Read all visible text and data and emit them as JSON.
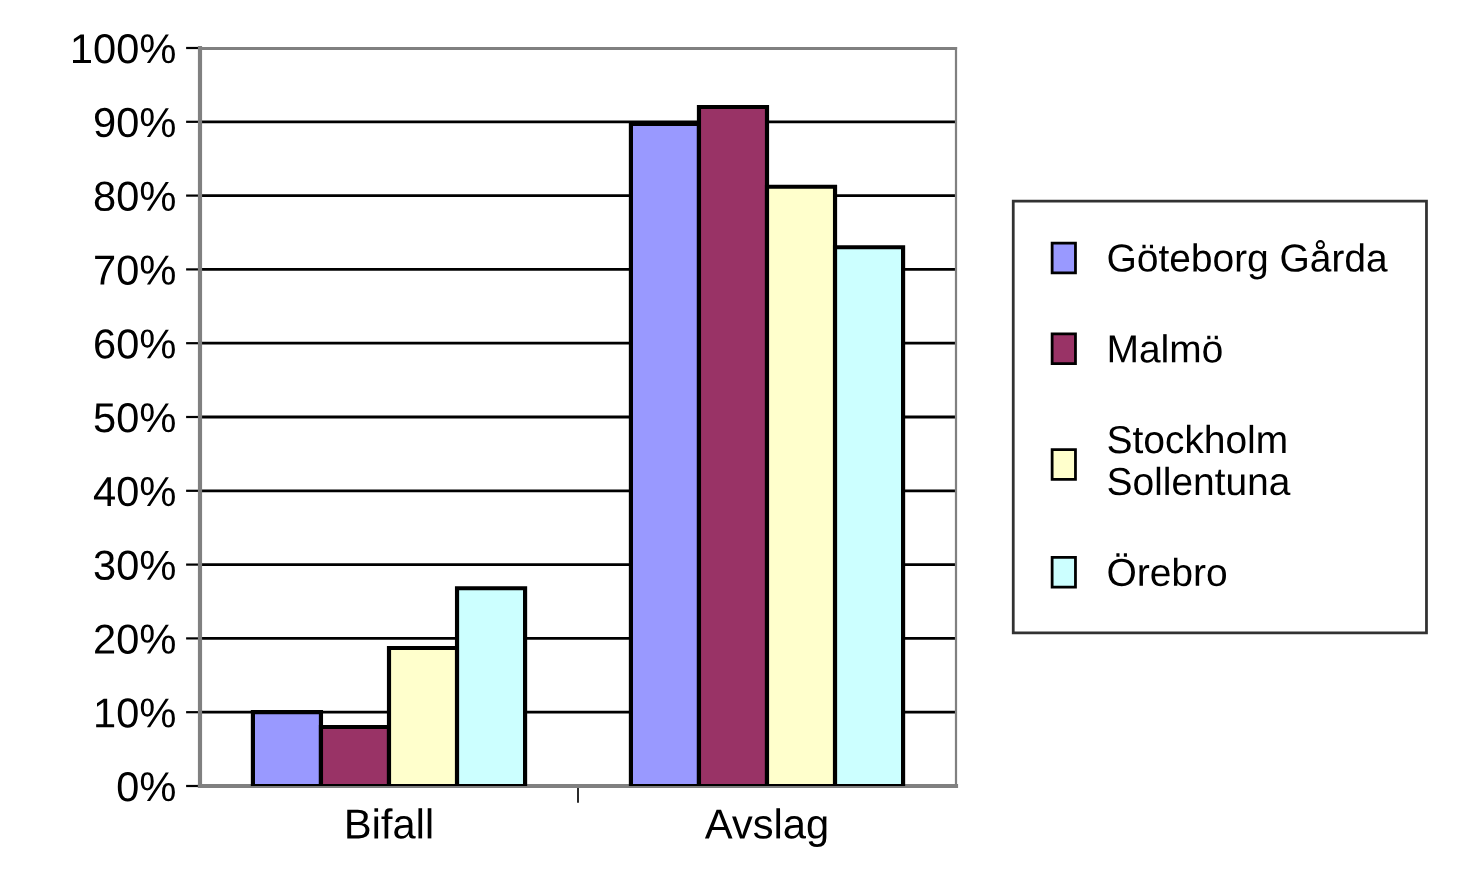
{
  "chart_data": {
    "type": "bar",
    "categories": [
      "Bifall",
      "Avslag"
    ],
    "series": [
      {
        "name": "Göteborg Gårda",
        "color": "#9999ff",
        "values": [
          10,
          89.7
        ]
      },
      {
        "name": "Malmö",
        "color": "#993366",
        "values": [
          8,
          92
        ]
      },
      {
        "name": "Stockholm Sollentuna",
        "color": "#ffffcc",
        "values": [
          18.7,
          81.2
        ]
      },
      {
        "name": "Örebro",
        "color": "#ccffff",
        "values": [
          26.8,
          73
        ]
      }
    ],
    "ylim": [
      0,
      100
    ],
    "yticks": [
      {
        "value": 0,
        "label": "0%"
      },
      {
        "value": 10,
        "label": "10%"
      },
      {
        "value": 20,
        "label": "20%"
      },
      {
        "value": 30,
        "label": "30%"
      },
      {
        "value": 40,
        "label": "40%"
      },
      {
        "value": 50,
        "label": "50%"
      },
      {
        "value": 60,
        "label": "60%"
      },
      {
        "value": 70,
        "label": "70%"
      },
      {
        "value": 80,
        "label": "80%"
      },
      {
        "value": 90,
        "label": "90%"
      },
      {
        "value": 100,
        "label": "100%"
      }
    ],
    "grid": "y",
    "legend": "right"
  }
}
